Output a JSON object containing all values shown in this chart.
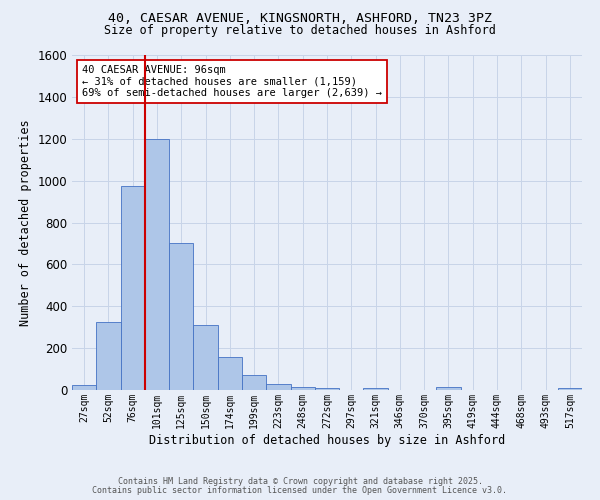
{
  "title_line1": "40, CAESAR AVENUE, KINGSNORTH, ASHFORD, TN23 3PZ",
  "title_line2": "Size of property relative to detached houses in Ashford",
  "xlabel": "Distribution of detached houses by size in Ashford",
  "ylabel": "Number of detached properties",
  "bin_labels": [
    "27sqm",
    "52sqm",
    "76sqm",
    "101sqm",
    "125sqm",
    "150sqm",
    "174sqm",
    "199sqm",
    "223sqm",
    "248sqm",
    "272sqm",
    "297sqm",
    "321sqm",
    "346sqm",
    "370sqm",
    "395sqm",
    "419sqm",
    "444sqm",
    "468sqm",
    "493sqm",
    "517sqm"
  ],
  "bar_heights": [
    25,
    325,
    975,
    1200,
    700,
    310,
    160,
    70,
    30,
    15,
    10,
    0,
    10,
    0,
    0,
    12,
    0,
    0,
    0,
    0,
    10
  ],
  "bar_color": "#aec6e8",
  "bar_edge_color": "#4472c4",
  "grid_color": "#c8d4e8",
  "background_color": "#e8eef8",
  "vline_color": "#cc0000",
  "annotation_text": "40 CAESAR AVENUE: 96sqm\n← 31% of detached houses are smaller (1,159)\n69% of semi-detached houses are larger (2,639) →",
  "annotation_box_edge": "#cc0000",
  "annotation_box_face": "#ffffff",
  "ylim": [
    0,
    1600
  ],
  "yticks": [
    0,
    200,
    400,
    600,
    800,
    1000,
    1200,
    1400,
    1600
  ],
  "footer_line1": "Contains HM Land Registry data © Crown copyright and database right 2025.",
  "footer_line2": "Contains public sector information licensed under the Open Government Licence v3.0."
}
